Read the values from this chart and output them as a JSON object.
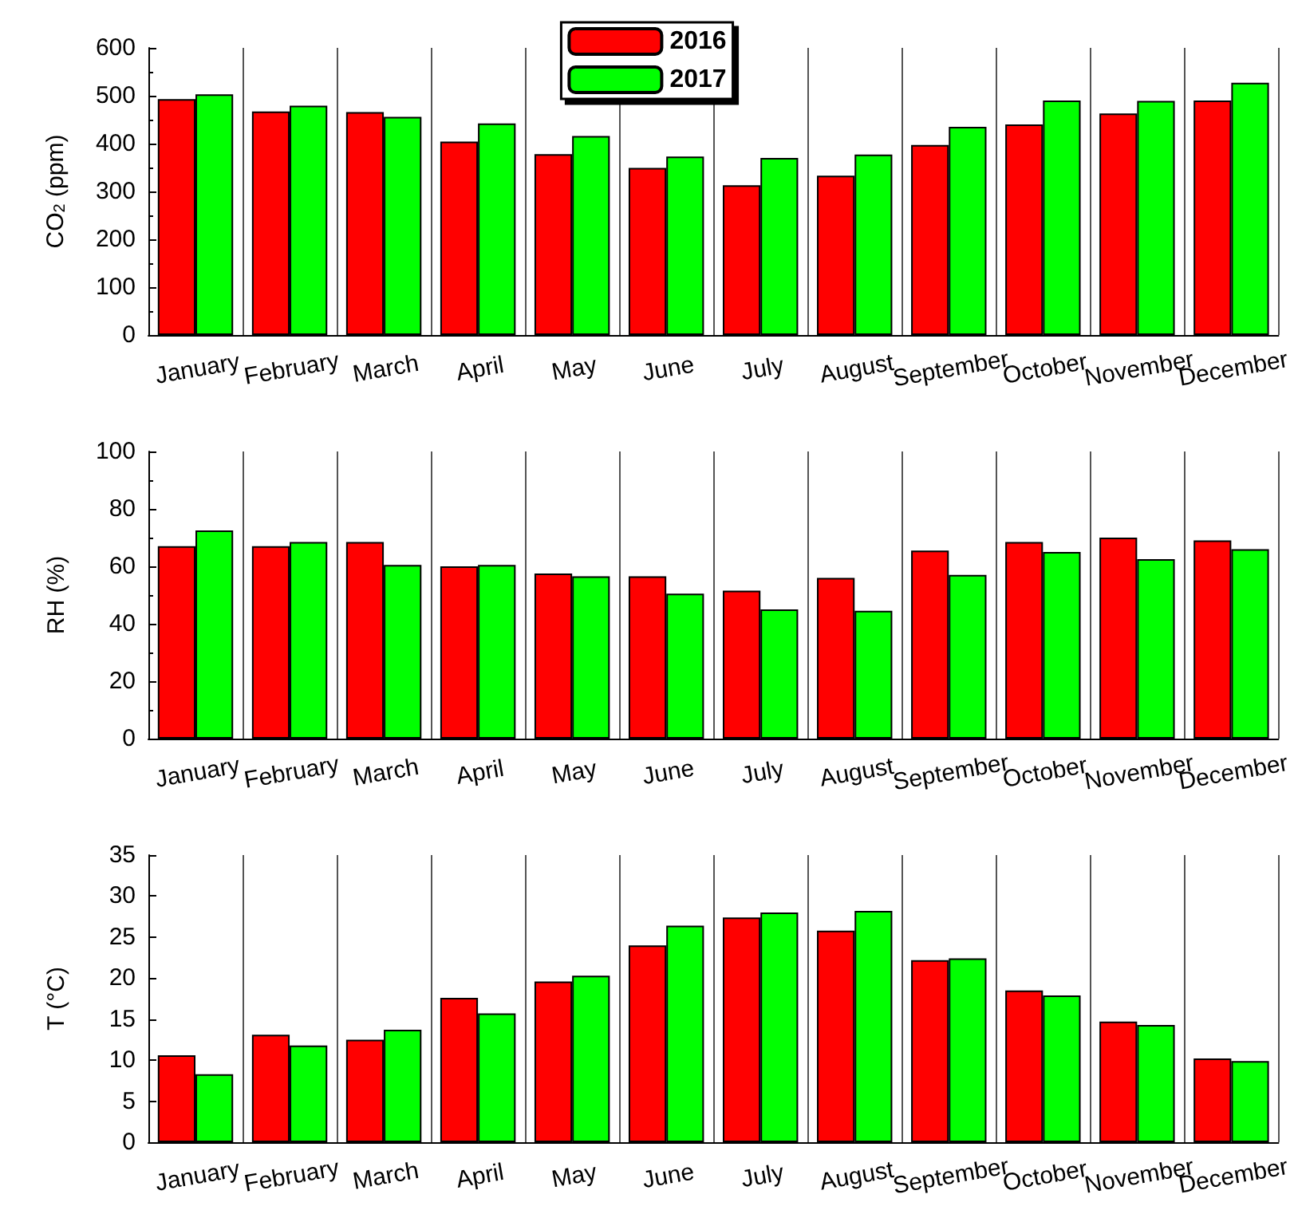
{
  "chart_data": [
    {
      "type": "bar",
      "ylabel": "CO$_{2}$ (ppm)",
      "categories": [
        "January",
        "February",
        "March",
        "April",
        "May",
        "June",
        "July",
        "August",
        "September",
        "October",
        "November",
        "December"
      ],
      "series": [
        {
          "name": "2016",
          "color": "#ff0000",
          "values": [
            493,
            467,
            466,
            404,
            378,
            349,
            313,
            333,
            397,
            440,
            463,
            490
          ]
        },
        {
          "name": "2017",
          "color": "#00ff00",
          "values": [
            503,
            479,
            456,
            442,
            416,
            373,
            370,
            377,
            435,
            490,
            489,
            527
          ]
        }
      ],
      "ylim": [
        0,
        600
      ],
      "yticks": [
        0,
        100,
        200,
        300,
        400,
        500,
        600
      ],
      "grid": "x",
      "legend": "top"
    },
    {
      "type": "bar",
      "ylabel": "RH (%)",
      "categories": [
        "January",
        "February",
        "March",
        "April",
        "May",
        "June",
        "July",
        "August",
        "September",
        "October",
        "November",
        "December"
      ],
      "series": [
        {
          "name": "2016",
          "color": "#ff0000",
          "values": [
            67,
            67,
            68.5,
            60,
            57.5,
            56.5,
            51.5,
            56,
            65.5,
            68.5,
            70,
            69
          ]
        },
        {
          "name": "2017",
          "color": "#00ff00",
          "values": [
            72.5,
            68.5,
            60.5,
            60.5,
            56.5,
            50.5,
            45,
            44.5,
            57,
            65,
            62.5,
            66
          ]
        }
      ],
      "ylim": [
        0,
        100
      ],
      "yticks": [
        0,
        20,
        40,
        60,
        80,
        100
      ],
      "grid": "x"
    },
    {
      "type": "bar",
      "ylabel": "T (°C)",
      "categories": [
        "January",
        "February",
        "March",
        "April",
        "May",
        "June",
        "July",
        "August",
        "September",
        "October",
        "November",
        "December"
      ],
      "series": [
        {
          "name": "2016",
          "color": "#ff0000",
          "values": [
            10.6,
            13.1,
            12.5,
            17.6,
            19.6,
            24.0,
            27.4,
            25.8,
            22.2,
            18.5,
            14.7,
            10.2
          ]
        },
        {
          "name": "2017",
          "color": "#00ff00",
          "values": [
            8.3,
            11.8,
            13.7,
            15.7,
            20.3,
            26.4,
            28.0,
            28.2,
            22.4,
            17.9,
            14.3,
            9.9
          ]
        }
      ],
      "ylim": [
        0,
        35
      ],
      "yticks": [
        0,
        5,
        10,
        15,
        20,
        25,
        30,
        35
      ],
      "grid": "x"
    }
  ]
}
